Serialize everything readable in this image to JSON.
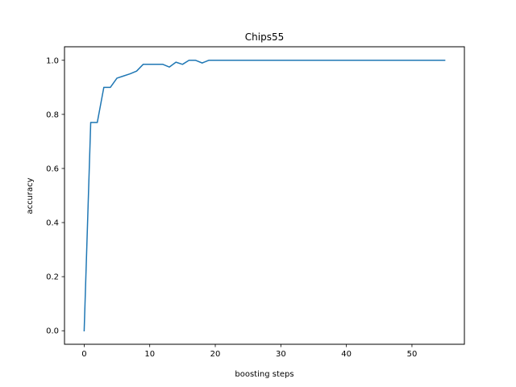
{
  "chart_data": {
    "type": "line",
    "title": "Chips55",
    "xlabel": "boosting steps",
    "ylabel": "accuracy",
    "xlim": [
      -3.0,
      58.0
    ],
    "ylim": [
      -0.05,
      1.05
    ],
    "xticks": [
      0,
      10,
      20,
      30,
      40,
      50
    ],
    "yticks": [
      0.0,
      0.2,
      0.4,
      0.6,
      0.8,
      1.0
    ],
    "xtick_labels": [
      "0",
      "10",
      "20",
      "30",
      "40",
      "50"
    ],
    "ytick_labels": [
      "0.0",
      "0.2",
      "0.4",
      "0.6",
      "0.8",
      "1.0"
    ],
    "grid": false,
    "legend": "none",
    "series": [
      {
        "color": "#1f77b4",
        "x": [
          0,
          1,
          2,
          3,
          4,
          5,
          6,
          7,
          8,
          9,
          10,
          11,
          12,
          13,
          14,
          15,
          16,
          17,
          18,
          19,
          20,
          25,
          30,
          35,
          40,
          45,
          50,
          55
        ],
        "y": [
          0.0,
          0.77,
          0.77,
          0.9,
          0.9,
          0.934,
          0.942,
          0.95,
          0.96,
          0.985,
          0.985,
          0.985,
          0.985,
          0.975,
          0.993,
          0.985,
          1.0,
          1.0,
          0.99,
          1.0,
          1.0,
          1.0,
          1.0,
          1.0,
          1.0,
          1.0,
          1.0,
          1.0
        ]
      }
    ]
  }
}
